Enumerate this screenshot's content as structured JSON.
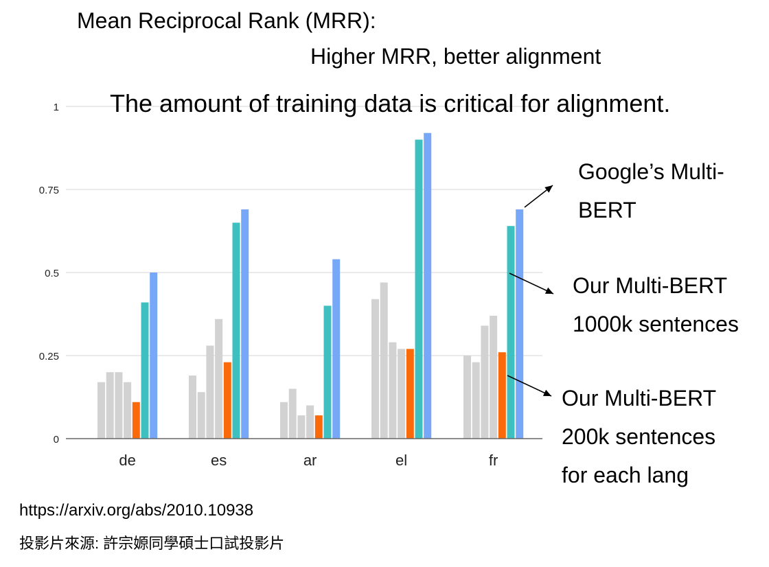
{
  "title": "Mean Reciprocal Rank (MRR):",
  "subtitle": "Higher MRR, better alignment",
  "headline": "The amount of training data is critical for alignment.",
  "annotations": {
    "google": [
      "Google’s Multi-",
      "BERT"
    ],
    "ours_1000k": [
      "Our Multi-BERT",
      "1000k sentences"
    ],
    "ours_200k": [
      "Our Multi-BERT",
      "200k sentences",
      "for each lang"
    ]
  },
  "source_url": "https://arxiv.org/abs/2010.10938",
  "source_note": "投影片來源: 許宗嫄同學碩士口試投影片",
  "colors": {
    "gray": "#d2d2d2",
    "orange": "#fa6a0a",
    "teal": "#3fc0c0",
    "blue": "#77a8f8",
    "grid": "#e4e4e4",
    "axis": "#666666"
  },
  "chart_data": {
    "type": "bar",
    "categories": [
      "de",
      "es",
      "ar",
      "el",
      "fr"
    ],
    "ylim": [
      0,
      1
    ],
    "yticks": [
      0,
      0.25,
      0.5,
      0.75,
      1
    ],
    "ytick_labels": [
      "0",
      "0.25",
      "0.5",
      "0.75",
      "1"
    ],
    "grid": true,
    "series": [
      {
        "color": "gray",
        "values": [
          0.17,
          0.19,
          0.11,
          0.42,
          0.25
        ]
      },
      {
        "color": "gray",
        "values": [
          0.2,
          0.14,
          0.15,
          0.47,
          0.23
        ]
      },
      {
        "color": "gray",
        "values": [
          0.2,
          0.28,
          0.07,
          0.29,
          0.34
        ]
      },
      {
        "color": "gray",
        "values": [
          0.17,
          0.36,
          0.1,
          0.27,
          0.37
        ]
      },
      {
        "color": "orange",
        "values": [
          0.11,
          0.23,
          0.07,
          0.27,
          0.26
        ]
      },
      {
        "color": "teal",
        "values": [
          0.41,
          0.65,
          0.4,
          0.9,
          0.64
        ]
      },
      {
        "color": "blue",
        "values": [
          0.5,
          0.69,
          0.54,
          0.92,
          0.69
        ]
      }
    ]
  }
}
